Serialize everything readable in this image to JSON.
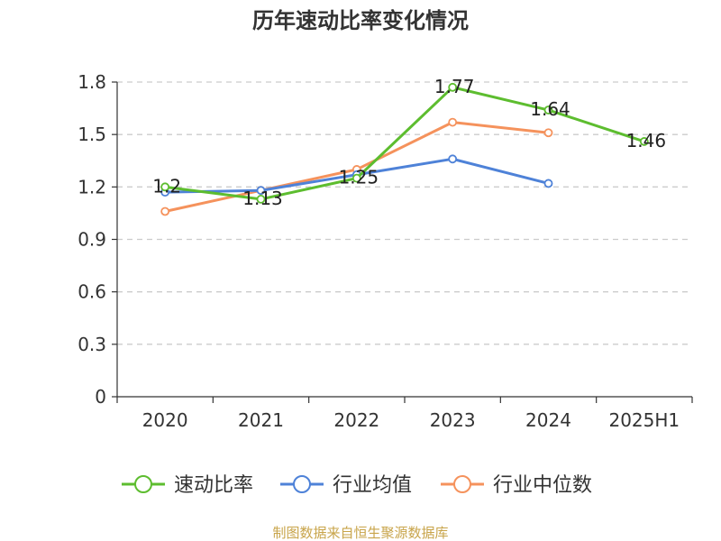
{
  "chart_data": {
    "type": "line",
    "title": "历年速动比率变化情况",
    "categories": [
      "2020",
      "2021",
      "2022",
      "2023",
      "2024",
      "2025H1"
    ],
    "ylim": [
      0,
      1.8
    ],
    "yticks": [
      "0",
      "0.3",
      "0.6",
      "0.9",
      "1.2",
      "1.5",
      "1.8"
    ],
    "grid": true,
    "legend_position": "bottom",
    "series": [
      {
        "name": "速动比率",
        "color": "#5dbd2f",
        "values": [
          1.2,
          1.13,
          1.25,
          1.77,
          1.64,
          1.46
        ],
        "labels": [
          "1.2",
          "1.13",
          "1.25",
          "1.77",
          "1.64",
          "1.46"
        ]
      },
      {
        "name": "行业均值",
        "color": "#4e82d8",
        "values": [
          1.17,
          1.18,
          1.27,
          1.36,
          1.22,
          null
        ]
      },
      {
        "name": "行业中位数",
        "color": "#f5925c",
        "values": [
          1.06,
          1.18,
          1.3,
          1.57,
          1.51,
          null
        ]
      }
    ]
  },
  "footer": {
    "source": "制图数据来自恒生聚源数据库",
    "source_color": "#c8a44a"
  }
}
